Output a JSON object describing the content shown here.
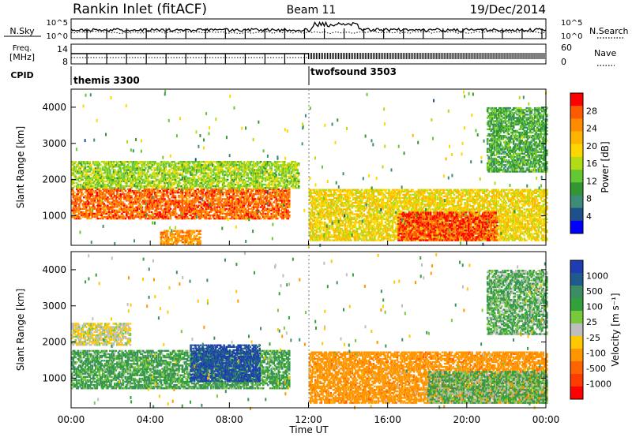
{
  "header": {
    "site": "Rankin Inlet (fitACF)",
    "beam": "Beam 11",
    "date": "19/Dec/2014"
  },
  "top_panels": {
    "nsky_label": "N.Sky",
    "nsky_ticks": [
      "10^5",
      "10^0"
    ],
    "nsearch_label": "N.Search",
    "nsearch_ticks": [
      "10^5",
      "10^0"
    ],
    "freq_label": "Freq.",
    "freq_unit": "[MHz]",
    "freq_ticks": [
      "14",
      "8"
    ],
    "nave_label": "Nave",
    "nave_ticks": [
      "60",
      "0"
    ],
    "cpid_label": "CPID",
    "cpid_modes": [
      {
        "name": "themis 3300",
        "start_hour": 0
      },
      {
        "name": "twofsound 3503",
        "start_hour": 12
      }
    ]
  },
  "chart_data": [
    {
      "type": "heatmap",
      "quantity": "Power",
      "ylabel": "Slant Range [km]",
      "xlabel": "",
      "xlim_hours": [
        0,
        24
      ],
      "ylim": [
        180,
        4500
      ],
      "yticks": [
        1000,
        2000,
        3000,
        4000
      ],
      "colorbar": {
        "label": "Power [dB]",
        "ticks": [
          "28",
          "24",
          "20",
          "16",
          "12",
          "8",
          "4"
        ],
        "colors": [
          "#ff0000",
          "#ff5a00",
          "#ff8c00",
          "#ffb400",
          "#ffd700",
          "#b4dc14",
          "#64c832",
          "#329632",
          "#3c8c78",
          "#1e508c",
          "#0000ff"
        ]
      },
      "echo_regions": [
        {
          "t0": 0.0,
          "t1": 11.0,
          "r0": 900,
          "r1": 1750,
          "dB": 26
        },
        {
          "t0": 0.0,
          "t1": 11.5,
          "r0": 1750,
          "r1": 2500,
          "dB": 14
        },
        {
          "t0": 4.5,
          "t1": 6.5,
          "r0": 200,
          "r1": 600,
          "dB": 24
        },
        {
          "t0": 12.0,
          "t1": 24.0,
          "r0": 300,
          "r1": 1700,
          "dB": 18
        },
        {
          "t0": 16.5,
          "t1": 21.5,
          "r0": 300,
          "r1": 1100,
          "dB": 28
        },
        {
          "t0": 21.0,
          "t1": 24.0,
          "r0": 2200,
          "r1": 4000,
          "dB": 10
        }
      ]
    },
    {
      "type": "heatmap",
      "quantity": "Velocity",
      "ylabel": "Slant Range [km]",
      "xlabel": "Time UT",
      "xlim_hours": [
        0,
        24
      ],
      "ylim": [
        180,
        4500
      ],
      "yticks": [
        1000,
        2000,
        3000,
        4000
      ],
      "xticks": [
        "00:00",
        "04:00",
        "08:00",
        "12:00",
        "16:00",
        "20:00",
        "00:00"
      ],
      "colorbar": {
        "label": "Velocity [m s⁻¹]",
        "ticks": [
          "1000",
          "500",
          "100",
          "25",
          "-25",
          "-100",
          "-500",
          "-1000"
        ],
        "colors": [
          "#1e3cb4",
          "#1e5a8c",
          "#3c8c64",
          "#32a03c",
          "#78c83c",
          "#bebebe",
          "#ffc800",
          "#ff9600",
          "#ff6400",
          "#ff3c00",
          "#ff0000"
        ]
      },
      "echo_regions": [
        {
          "t0": 0.0,
          "t1": 11.0,
          "r0": 700,
          "r1": 1750,
          "v": 80
        },
        {
          "t0": 6.0,
          "t1": 9.5,
          "r0": 900,
          "r1": 1900,
          "v": 700
        },
        {
          "t0": 0.0,
          "t1": 3.0,
          "r0": 1900,
          "r1": 2500,
          "v": -10
        },
        {
          "t0": 12.0,
          "t1": 24.0,
          "r0": 300,
          "r1": 1700,
          "v": -250
        },
        {
          "t0": 18.0,
          "t1": 24.0,
          "r0": 300,
          "r1": 1200,
          "v": 60
        },
        {
          "t0": 21.0,
          "t1": 24.0,
          "r0": 2200,
          "r1": 4000,
          "v": 60
        }
      ]
    }
  ]
}
